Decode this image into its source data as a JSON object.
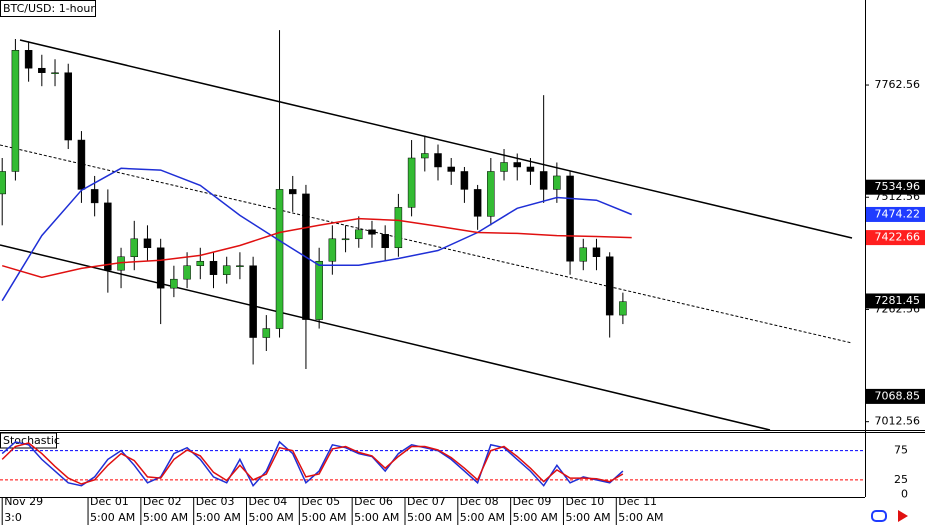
{
  "chart_data": {
    "type": "candlestick",
    "title": "BTC/USD: 1-hour",
    "xlim": [
      -1,
      392
    ],
    "xticks": [
      {
        "value": 0,
        "label": "Nov 29"
      },
      {
        "value": 39,
        "label": "Dec 01"
      },
      {
        "value": 63,
        "label": "Dec 02"
      },
      {
        "value": 87,
        "label": "Dec 03"
      },
      {
        "value": 111,
        "label": "Dec 04"
      },
      {
        "value": 135,
        "label": "Dec 05"
      },
      {
        "value": 159,
        "label": "Dec 06"
      },
      {
        "value": 183,
        "label": "Dec 07"
      },
      {
        "value": 207,
        "label": "Dec 08"
      },
      {
        "value": 231,
        "label": "Dec 09"
      },
      {
        "value": 255,
        "label": "Dec 10"
      },
      {
        "value": 279,
        "label": "Dec 11"
      }
    ],
    "x_sublabels": [
      "3:0",
      "5:00 AM",
      "5:00 AM",
      "5:00 AM",
      "5:00 AM",
      "5:00 AM",
      "5:00 AM",
      "5:00 AM",
      "5:00 AM",
      "5:00 AM",
      "5:00 AM",
      "5:00 AM"
    ],
    "ylim": [
      6994,
      7952
    ],
    "yticks": [
      7762.56,
      7512.56,
      7262.56,
      7012.56
    ],
    "candles": {
      "up_color": "#33bb33",
      "down_color": "#000000",
      "x": [
        0,
        6,
        12,
        18,
        24,
        30,
        36,
        42,
        48,
        54,
        60,
        66,
        72,
        78,
        84,
        90,
        96,
        102,
        108,
        114,
        120,
        126,
        132,
        138,
        144,
        150,
        156,
        162,
        168,
        174,
        180,
        186,
        192,
        198,
        204,
        210,
        216,
        222,
        228,
        234,
        240,
        246,
        252,
        258,
        264,
        270,
        276,
        282
      ],
      "open": [
        7520,
        7570,
        7840,
        7800,
        7790,
        7790,
        7640,
        7530,
        7500,
        7350,
        7380,
        7420,
        7400,
        7310,
        7330,
        7360,
        7370,
        7340,
        7360,
        7360,
        7200,
        7220,
        7530,
        7520,
        7240,
        7370,
        7420,
        7420,
        7440,
        7430,
        7400,
        7490,
        7600,
        7610,
        7580,
        7570,
        7530,
        7470,
        7570,
        7590,
        7580,
        7570,
        7530,
        7560,
        7370,
        7400,
        7380,
        7250
      ],
      "high": [
        7600,
        7865,
        7860,
        7830,
        7820,
        7810,
        7660,
        7560,
        7530,
        7400,
        7460,
        7450,
        7420,
        7360,
        7390,
        7400,
        7390,
        7380,
        7390,
        7380,
        7250,
        7885,
        7560,
        7540,
        7400,
        7450,
        7450,
        7470,
        7460,
        7450,
        7520,
        7640,
        7650,
        7630,
        7600,
        7580,
        7540,
        7600,
        7620,
        7610,
        7600,
        7740,
        7590,
        7570,
        7420,
        7420,
        7390,
        7300
      ],
      "low": [
        7450,
        7550,
        7770,
        7760,
        7760,
        7620,
        7500,
        7470,
        7300,
        7310,
        7350,
        7370,
        7230,
        7290,
        7310,
        7330,
        7310,
        7320,
        7330,
        7140,
        7170,
        7200,
        7480,
        7130,
        7220,
        7340,
        7390,
        7400,
        7400,
        7370,
        7380,
        7470,
        7570,
        7550,
        7540,
        7500,
        7440,
        7450,
        7550,
        7550,
        7540,
        7500,
        7500,
        7340,
        7350,
        7350,
        7200,
        7230
      ],
      "close": [
        7570,
        7840,
        7800,
        7790,
        7790,
        7640,
        7530,
        7500,
        7350,
        7380,
        7420,
        7400,
        7310,
        7330,
        7360,
        7370,
        7340,
        7360,
        7360,
        7200,
        7220,
        7530,
        7520,
        7240,
        7370,
        7420,
        7420,
        7440,
        7430,
        7400,
        7490,
        7600,
        7610,
        7580,
        7570,
        7530,
        7470,
        7570,
        7590,
        7580,
        7570,
        7530,
        7560,
        7370,
        7400,
        7380,
        7250,
        7280
      ]
    },
    "series": [
      {
        "color": "#1f2fd6",
        "x": [
          0,
          18,
          36,
          54,
          72,
          90,
          108,
          126,
          144,
          162,
          180,
          198,
          216,
          234,
          252,
          270,
          286
        ],
        "values": [
          7282,
          7427,
          7528,
          7577,
          7573,
          7539,
          7472,
          7416,
          7361,
          7361,
          7376,
          7394,
          7434,
          7488,
          7512,
          7506,
          7474.22
        ]
      },
      {
        "color": "#e01010",
        "x": [
          0,
          18,
          36,
          54,
          72,
          90,
          108,
          126,
          144,
          162,
          180,
          198,
          216,
          234,
          252,
          270,
          286
        ],
        "values": [
          7360,
          7334,
          7354,
          7367,
          7372,
          7383,
          7405,
          7434,
          7450,
          7465,
          7461,
          7448,
          7434,
          7432,
          7427,
          7425,
          7422.66
        ]
      }
    ],
    "price_tags": [
      {
        "value": 7534.96,
        "color": "#000000"
      },
      {
        "value": 7474.22,
        "color": "#1f3cff"
      },
      {
        "value": 7422.66,
        "color": "#ff1f1f"
      },
      {
        "value": 7281.45,
        "color": "#000000"
      },
      {
        "value": 7068.85,
        "color": "#000000"
      }
    ],
    "stochastic": {
      "title": "Stochastic",
      "ylim": [
        0,
        100
      ],
      "yticks": [
        75,
        25,
        0
      ],
      "levels": [
        {
          "value": 75,
          "color": "#0000ff"
        },
        {
          "value": 25,
          "color": "#ff0000"
        }
      ],
      "series": [
        {
          "color": "#1f2fd6",
          "values": [
            70,
            90,
            85,
            60,
            40,
            20,
            15,
            30,
            60,
            75,
            50,
            20,
            30,
            70,
            80,
            60,
            30,
            20,
            60,
            15,
            40,
            90,
            70,
            20,
            40,
            85,
            80,
            70,
            65,
            40,
            70,
            85,
            80,
            75,
            60,
            40,
            20,
            85,
            80,
            60,
            40,
            15,
            50,
            20,
            30,
            25,
            20,
            40
          ]
        },
        {
          "color": "#e01010",
          "values": [
            60,
            82,
            88,
            70,
            48,
            28,
            18,
            25,
            50,
            70,
            58,
            30,
            28,
            60,
            76,
            66,
            38,
            24,
            50,
            25,
            35,
            80,
            75,
            30,
            35,
            78,
            82,
            72,
            66,
            45,
            65,
            82,
            82,
            76,
            63,
            45,
            25,
            75,
            82,
            65,
            45,
            22,
            42,
            28,
            28,
            27,
            22,
            35
          ]
        }
      ]
    }
  }
}
